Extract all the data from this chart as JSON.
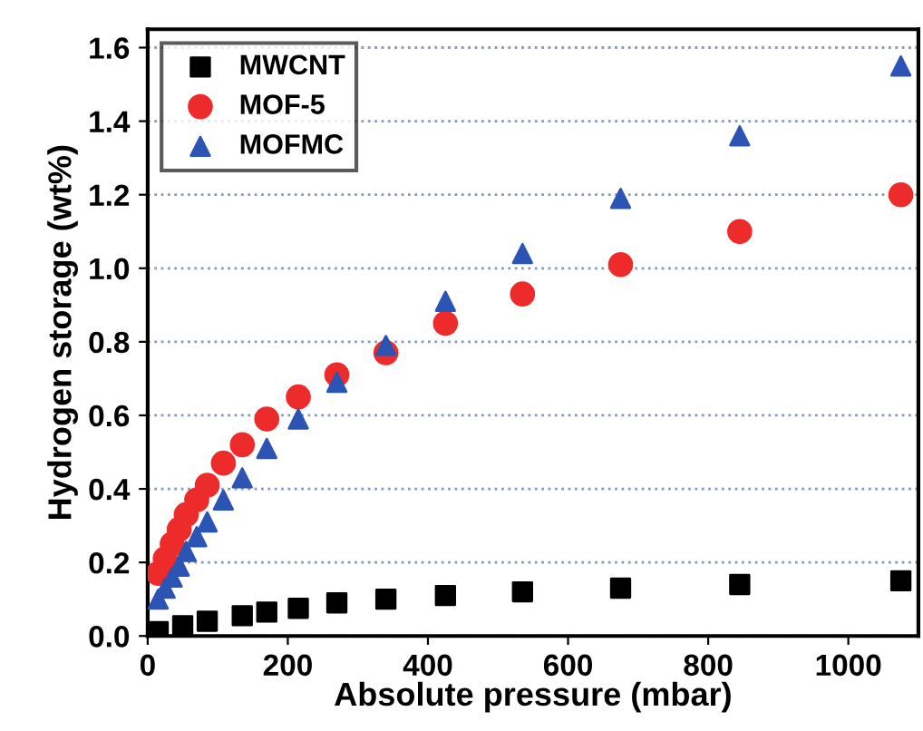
{
  "chart_data": {
    "type": "scatter",
    "xlabel": "Absolute pressure (mbar)",
    "ylabel": "Hydrogen storage (wt%)",
    "x": [
      15,
      25,
      35,
      45,
      55,
      70,
      85,
      108,
      135,
      170,
      215,
      270,
      340,
      425,
      535,
      675,
      845,
      1075
    ],
    "series": [
      {
        "name": "MWCNT",
        "color": "#000000",
        "marker": "square",
        "x": [
          15,
          50,
          85,
          135,
          170,
          215,
          270,
          340,
          425,
          535,
          675,
          845,
          1075
        ],
        "values": [
          0.012,
          0.028,
          0.04,
          0.055,
          0.065,
          0.075,
          0.09,
          0.1,
          0.11,
          0.12,
          0.13,
          0.14,
          0.15
        ]
      },
      {
        "name": "MOF-5",
        "color": "#ee2b2b",
        "marker": "circle",
        "values": [
          0.17,
          0.21,
          0.25,
          0.29,
          0.33,
          0.37,
          0.41,
          0.47,
          0.52,
          0.59,
          0.65,
          0.71,
          0.77,
          0.85,
          0.93,
          1.01,
          1.1,
          1.2
        ]
      },
      {
        "name": "MOFMC",
        "color": "#2b54b4",
        "marker": "triangle",
        "values": [
          0.1,
          0.13,
          0.16,
          0.19,
          0.23,
          0.27,
          0.31,
          0.37,
          0.43,
          0.51,
          0.59,
          0.69,
          0.79,
          0.91,
          1.04,
          1.19,
          1.36,
          1.55
        ]
      }
    ],
    "xlim": [
      0,
      1100
    ],
    "ylim": [
      0,
      1.65
    ],
    "xticks": [
      0,
      200,
      400,
      600,
      800,
      1000
    ],
    "yticks": [
      {
        "value": 0,
        "label": "0.0"
      },
      0.2,
      0.4,
      0.6,
      0.8,
      {
        "value": 1,
        "label": "1.0"
      },
      1.2,
      1.4,
      1.6
    ],
    "grid": "y",
    "legend": "top left"
  }
}
